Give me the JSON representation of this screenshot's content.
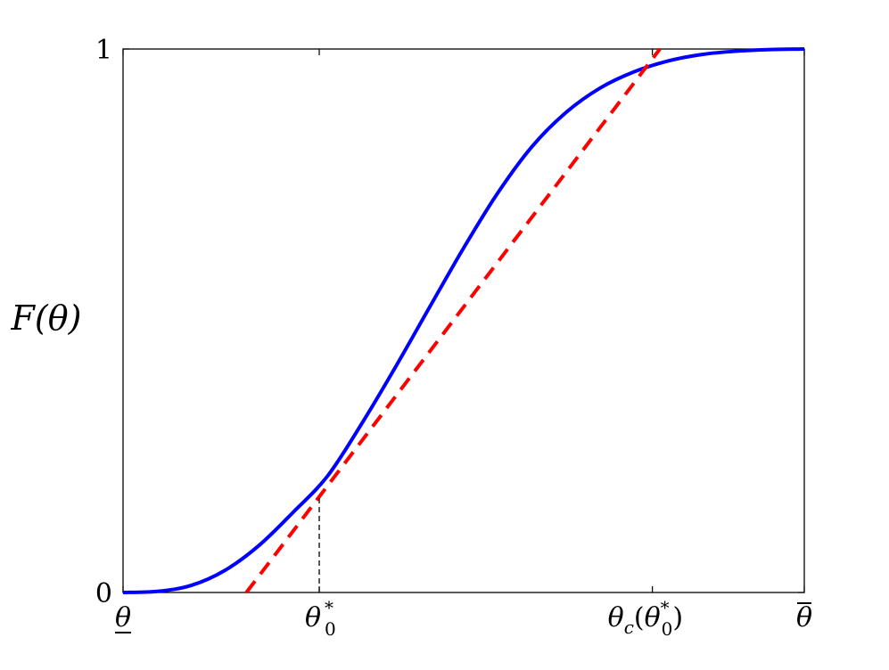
{
  "chart_data": {
    "type": "line",
    "title": "",
    "xlabel": "",
    "ylabel": "F(θ)",
    "xlim": [
      0,
      1
    ],
    "ylim": [
      0,
      1
    ],
    "grid": false,
    "legend": "none",
    "y_ticks": [
      {
        "value": 0,
        "label": "0"
      },
      {
        "value": 1,
        "label": "1"
      }
    ],
    "x_ticks": [
      {
        "value": 0.0,
        "label": "θ̲",
        "key": "theta-lower"
      },
      {
        "value": 0.288,
        "label": "θ₀*",
        "key": "theta0-star"
      },
      {
        "value": 0.777,
        "label": "θc(θ₀*)",
        "key": "thetac-theta0-star"
      },
      {
        "value": 1.0,
        "label": "θ̄",
        "key": "theta-upper"
      }
    ],
    "series": [
      {
        "style": "solid",
        "color": "#0000ff",
        "x": [
          0.0,
          0.05,
          0.1,
          0.15,
          0.2,
          0.25,
          0.3,
          0.35,
          0.4,
          0.45,
          0.5,
          0.55,
          0.6,
          0.65,
          0.7,
          0.75,
          0.8,
          0.85,
          0.9,
          0.95,
          1.0
        ],
        "y": [
          0.0,
          0.002,
          0.013,
          0.041,
          0.087,
          0.148,
          0.214,
          0.31,
          0.415,
          0.525,
          0.634,
          0.735,
          0.82,
          0.883,
          0.928,
          0.958,
          0.978,
          0.99,
          0.996,
          0.999,
          1.0
        ]
      },
      {
        "style": "dashed",
        "color": "#ff0000",
        "x": [
          0.181,
          0.788
        ],
        "y": [
          0.0,
          1.0
        ]
      },
      {
        "style": "dashed-thin",
        "color": "#000000",
        "x": [
          0.288,
          0.288
        ],
        "y": [
          0.0,
          0.175
        ]
      }
    ],
    "colors": {
      "cdf_curve": "#0000ff",
      "tangent_line": "#ff0000",
      "guide_line": "#000000",
      "axes": "#000000"
    }
  }
}
